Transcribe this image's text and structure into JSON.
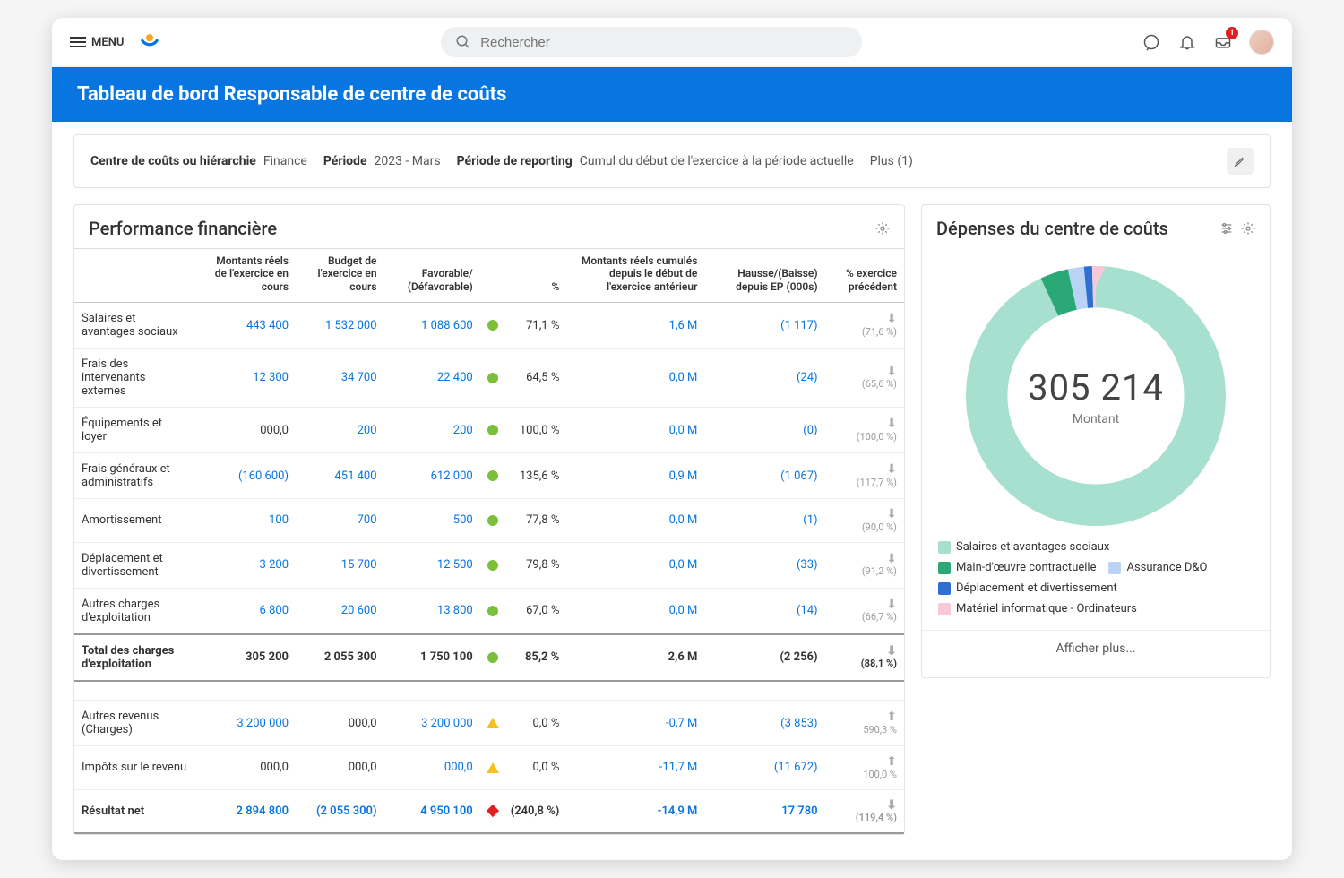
{
  "topbar": {
    "menu_label": "MENU",
    "search_placeholder": "Rechercher",
    "inbox_badge": "1"
  },
  "header": {
    "title": "Tableau de bord Responsable de centre de coûts"
  },
  "filters": {
    "label1": "Centre de coûts ou hiérarchie",
    "val1": "Finance",
    "label2": "Période",
    "val2": "2023 - Mars",
    "label3": "Période de reporting",
    "val3": "Cumul du début de l'exercice à la période actuelle",
    "more": "Plus (1)"
  },
  "fin_panel": {
    "title": "Performance financière",
    "cols": {
      "c0": "",
      "c1": "Montants réels de l'exercice en cours",
      "c2": "Budget de l'exercice en cours",
      "c3": "Favorable/ (Défavorable)",
      "c4": "%",
      "c5": "Montants réels cumulés depuis le début de l'exercice antérieur",
      "c6": "Hausse/(Baisse) depuis EP (000s)",
      "c7": "% exercice précédent"
    },
    "status_colors": {
      "green": "#7bbf3a",
      "yellow": "#f5c021",
      "red": "#e02020"
    },
    "link_color": "#0875e1",
    "rows": [
      {
        "label": "Salaires et avantages sociaux",
        "actual": "443 400",
        "budget": "1 532 000",
        "fav": "1 088 600",
        "status": "green",
        "shape": "dot",
        "pct": "71,1 %",
        "prior": "1,6 M",
        "change": "(1 117)",
        "dir": "down",
        "prev": "(71,6 %)"
      },
      {
        "label": "Frais des intervenants externes",
        "actual": "12 300",
        "budget": "34 700",
        "fav": "22 400",
        "status": "green",
        "shape": "dot",
        "pct": "64,5 %",
        "prior": "0,0 M",
        "change": "(24)",
        "dir": "down",
        "prev": "(65,6 %)"
      },
      {
        "label": "Équipements et loyer",
        "actual": "000,0",
        "budget": "200",
        "fav": "200",
        "status": "green",
        "shape": "dot",
        "pct": "100,0 %",
        "prior": "0,0 M",
        "change": "(0)",
        "dir": "down",
        "prev": "(100,0 %)",
        "black_actual": true
      },
      {
        "label": "Frais généraux et administratifs",
        "actual": "(160 600)",
        "budget": "451 400",
        "fav": "612 000",
        "status": "green",
        "shape": "dot",
        "pct": "135,6 %",
        "prior": "0,9 M",
        "change": "(1 067)",
        "dir": "down",
        "prev": "(117,7 %)"
      },
      {
        "label": "Amortissement",
        "actual": "100",
        "budget": "700",
        "fav": "500",
        "status": "green",
        "shape": "dot",
        "pct": "77,8 %",
        "prior": "0,0 M",
        "change": "(1)",
        "dir": "down",
        "prev": "(90,0 %)"
      },
      {
        "label": "Déplacement et divertissement",
        "actual": "3 200",
        "budget": "15 700",
        "fav": "12 500",
        "status": "green",
        "shape": "dot",
        "pct": "79,8 %",
        "prior": "0,0 M",
        "change": "(33)",
        "dir": "down",
        "prev": "(91,2 %)"
      },
      {
        "label": "Autres charges d'exploitation",
        "actual": "6 800",
        "budget": "20 600",
        "fav": "13 800",
        "status": "green",
        "shape": "dot",
        "pct": "67,0 %",
        "prior": "0,0 M",
        "change": "(14)",
        "dir": "down",
        "prev": "(66,7 %)"
      }
    ],
    "total": {
      "label": "Total des charges d'exploitation",
      "actual": "305 200",
      "budget": "2 055 300",
      "fav": "1 750 100",
      "status": "green",
      "shape": "dot",
      "pct": "85,2 %",
      "prior": "2,6 M",
      "change": "(2 256)",
      "dir": "down",
      "prev": "(88,1 %)"
    },
    "extra_rows": [
      {
        "label": "Autres revenus (Charges)",
        "actual": "3 200 000",
        "budget": "000,0",
        "fav": "3 200 000",
        "status": "yellow",
        "shape": "tri",
        "pct": "0,0 %",
        "prior": "-0,7 M",
        "change": "(3 853)",
        "dir": "up",
        "prev": "590,3 %",
        "black_budget": true
      },
      {
        "label": "Impôts sur le revenu",
        "actual": "000,0",
        "budget": "000,0",
        "fav": "000,0",
        "status": "yellow",
        "shape": "tri",
        "pct": "0,0 %",
        "prior": "-11,7 M",
        "change": "(11 672)",
        "dir": "up",
        "prev": "100,0 %",
        "black_actual": true,
        "black_budget": true
      }
    ],
    "net": {
      "label": "Résultat net",
      "actual": "2 894 800",
      "budget": "(2 055 300)",
      "fav": "4 950 100",
      "status": "red",
      "shape": "dia",
      "pct": "(240,8 %)",
      "prior": "-14,9 M",
      "change": "17 780",
      "dir": "down",
      "prev": "(119,4 %)"
    }
  },
  "donut_panel": {
    "title": "Dépenses du centre de coûts",
    "center_value": "305 214",
    "center_label": "Montant",
    "show_more": "Afficher plus...",
    "ring_bg": "#a7e0cf",
    "slices": [
      {
        "label": "Salaires et avantages sociaux",
        "color": "#a7e0cf",
        "frac": 0.93
      },
      {
        "label": "Main-d'œuvre contractuelle",
        "color": "#2aa876",
        "frac": 0.035
      },
      {
        "label": "Assurance D&O",
        "color": "#b9d3f7",
        "frac": 0.02
      },
      {
        "label": "Déplacement et divertissement",
        "color": "#2f6fd0",
        "frac": 0.01
      },
      {
        "label": "Matériel informatique - Ordinateurs",
        "color": "#f8c8d8",
        "frac": 0.005
      }
    ]
  }
}
